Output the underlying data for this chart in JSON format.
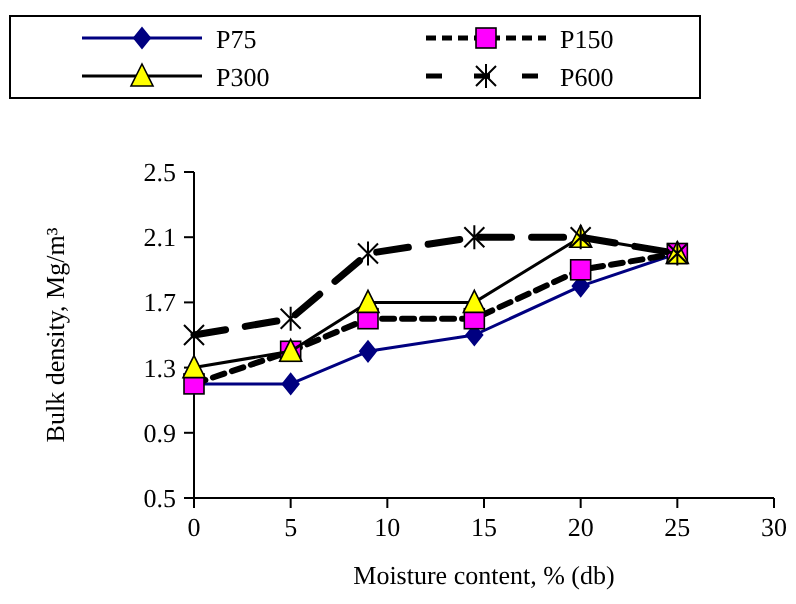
{
  "chart_data": {
    "type": "line",
    "xlabel": "Moisture content, % (db)",
    "ylabel": "Bulk density, Mg/m³",
    "xlim": [
      0,
      30
    ],
    "xticks": [
      0,
      5,
      10,
      15,
      20,
      25,
      30
    ],
    "ylim": [
      0.5,
      2.5
    ],
    "yticks": [
      0.5,
      0.9,
      1.3,
      1.7,
      2.1,
      2.5
    ],
    "grid": false,
    "legend": "top",
    "x": [
      0,
      5,
      9,
      14.5,
      20,
      25
    ],
    "series": [
      {
        "name": "P75",
        "color": "#000080",
        "values": [
          1.2,
          1.2,
          1.4,
          1.5,
          1.8,
          2.0
        ],
        "marker": "diamond",
        "line_style": "solid",
        "colors": [
          "#000080",
          "#000080",
          "#000080",
          "#000080",
          "#000080",
          "#000080"
        ]
      },
      {
        "name": "P150",
        "color": "#000000",
        "values": [
          1.2,
          1.4,
          1.6,
          1.6,
          1.9,
          2.0
        ],
        "marker": "square",
        "line_style": "dashed",
        "colors": [
          "#ff00ff",
          "#ff00ff",
          "#ff00ff",
          "#ff00ff",
          "#ff00ff",
          "#ff00ff"
        ]
      },
      {
        "name": "P300",
        "color": "#000000",
        "values": [
          1.3,
          1.4,
          1.7,
          1.7,
          2.1,
          2.0
        ],
        "marker": "triangle",
        "line_style": "solid",
        "colors": [
          "#ffff00",
          "#ffff00",
          "#ffff00",
          "#ffff00",
          "#ffff00",
          "#ffff00"
        ]
      },
      {
        "name": "P600",
        "color": "#000000",
        "values": [
          1.5,
          1.6,
          2.0,
          2.1,
          2.1,
          2.0
        ],
        "marker": "cross",
        "line_style": "longdash",
        "colors": [
          "#000000",
          "#000000",
          "#000000",
          "#000000",
          "#000000",
          "#000000"
        ]
      }
    ]
  }
}
